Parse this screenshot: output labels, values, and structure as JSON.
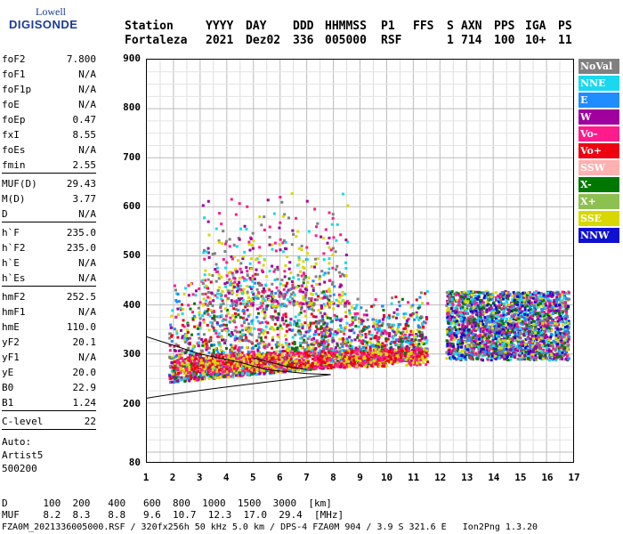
{
  "logo": {
    "top": "Lowell",
    "bottom": "DIGISONDE"
  },
  "header": {
    "labels": [
      "Station",
      "YYYY",
      "DAY",
      "DDD",
      "HHMMSS",
      "P1",
      "FFS",
      "S",
      "AXN",
      "PPS",
      "IGA",
      "PS"
    ],
    "values": [
      "Fortaleza",
      "2021",
      "Dez02",
      "336",
      "005000",
      "RSF",
      "",
      "1",
      "714",
      "100",
      "10+",
      "11"
    ]
  },
  "params": {
    "group1": [
      {
        "k": "foF2",
        "v": "7.800"
      },
      {
        "k": "foF1",
        "v": "N/A"
      },
      {
        "k": "foF1p",
        "v": "N/A"
      },
      {
        "k": "foE",
        "v": "N/A"
      },
      {
        "k": "foEp",
        "v": "0.47"
      },
      {
        "k": "fxI",
        "v": "8.55"
      },
      {
        "k": "foEs",
        "v": "N/A"
      },
      {
        "k": "fmin",
        "v": "2.55"
      }
    ],
    "group2": [
      {
        "k": "MUF(D)",
        "v": "29.43"
      },
      {
        "k": "M(D)",
        "v": "3.77"
      },
      {
        "k": "D",
        "v": "N/A"
      }
    ],
    "group3": [
      {
        "k": "h`F",
        "v": "235.0"
      },
      {
        "k": "h`F2",
        "v": "235.0"
      },
      {
        "k": "h`E",
        "v": "N/A"
      },
      {
        "k": "h`Es",
        "v": "N/A"
      }
    ],
    "group4": [
      {
        "k": "hmF2",
        "v": "252.5"
      },
      {
        "k": "hmF1",
        "v": "N/A"
      },
      {
        "k": "hmE",
        "v": "110.0"
      },
      {
        "k": "yF2",
        "v": "20.1"
      },
      {
        "k": "yF1",
        "v": "N/A"
      },
      {
        "k": "yE",
        "v": "20.0"
      },
      {
        "k": "B0",
        "v": "22.9"
      },
      {
        "k": "B1",
        "v": "1.24"
      }
    ],
    "clevel": {
      "k": "C-level",
      "v": "22"
    },
    "auto": [
      "Auto:",
      "Artist5",
      "500200"
    ]
  },
  "axes": {
    "y_ticks": [
      "900",
      "800",
      "700",
      "600",
      "500",
      "400",
      "300",
      "200",
      "80"
    ],
    "x_ticks": [
      "1",
      "2",
      "3",
      "4",
      "5",
      "6",
      "7",
      "8",
      "9",
      "10",
      "11",
      "12",
      "13",
      "14",
      "15",
      "16",
      "17"
    ]
  },
  "legend": [
    {
      "label": "NoVal",
      "bg": "#808080",
      "fg": "#ffffff"
    },
    {
      "label": "NNE",
      "bg": "#19d8f0",
      "fg": "#ffffff"
    },
    {
      "label": "E",
      "bg": "#1f8cff",
      "fg": "#ffffff"
    },
    {
      "label": "W",
      "bg": "#a0009e",
      "fg": "#ffffff"
    },
    {
      "label": "Vo-",
      "bg": "#ff1b8c",
      "fg": "#ffffff"
    },
    {
      "label": "Vo+",
      "bg": "#ee0010",
      "fg": "#ffffff"
    },
    {
      "label": "SSW",
      "bg": "#ffb0b0",
      "fg": "#ffffff"
    },
    {
      "label": "X-",
      "bg": "#007800",
      "fg": "#ffffff"
    },
    {
      "label": "X+",
      "bg": "#8cc050",
      "fg": "#ffffff"
    },
    {
      "label": "SSE",
      "bg": "#d8d800",
      "fg": "#ffffff"
    },
    {
      "label": "NNW",
      "bg": "#1010d0",
      "fg": "#ffffff"
    }
  ],
  "footer": {
    "line1": "D      100  200   400   600  800  1000  1500  3000  [km]",
    "line2": "MUF    8.2  8.3   8.8   9.6  10.7  12.3  17.0  29.4  [MHz]",
    "line3": "FZA0M_2021336005000.RSF / 320fx256h 50 kHz 5.0 km / DPS-4 FZA0M 904 / 3.9 S 321.6 E   Ion2Png 1.3.20"
  }
}
